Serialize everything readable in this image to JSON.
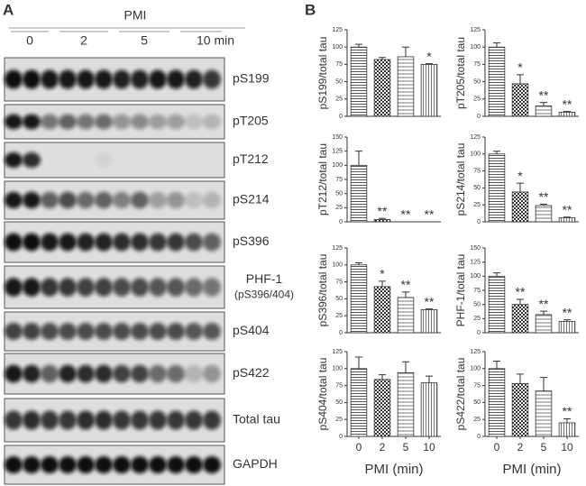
{
  "panel_a": {
    "panel_label": "A",
    "header": "PMI",
    "groups": [
      "0",
      "2",
      "5",
      "10 min"
    ],
    "rows": [
      {
        "label": "pS199"
      },
      {
        "label": "pT205"
      },
      {
        "label": "pT212"
      },
      {
        "label": "pS214"
      },
      {
        "label": "pS396"
      },
      {
        "label": "PHF-1",
        "note": "(pS396/404)"
      },
      {
        "label": "pS404"
      },
      {
        "label": "pS422"
      },
      {
        "label": "Total tau"
      },
      {
        "label": "GAPDH"
      }
    ]
  },
  "panel_b": {
    "panel_label": "B"
  },
  "chart_data": [
    {
      "type": "bar",
      "ylabel": "pS199/total tau",
      "categories": [
        null,
        null,
        null,
        null
      ],
      "values": [
        100,
        82,
        86,
        75
      ],
      "errors": [
        4,
        3,
        14,
        1
      ],
      "annotations": [
        null,
        null,
        null,
        "*"
      ],
      "ylim": [
        0,
        125
      ],
      "yticks": [
        0,
        25,
        50,
        75,
        100,
        125
      ]
    },
    {
      "type": "bar",
      "ylabel": "pT205/total tau",
      "categories": [
        null,
        null,
        null,
        null
      ],
      "values": [
        100,
        47,
        15,
        6
      ],
      "errors": [
        6,
        13,
        5,
        1
      ],
      "annotations": [
        null,
        "*",
        "**",
        "**"
      ],
      "ylim": [
        0,
        125
      ],
      "yticks": [
        0,
        25,
        50,
        75,
        100,
        125
      ]
    },
    {
      "type": "bar",
      "ylabel": "pT212/total tau",
      "categories": [
        null,
        null,
        null,
        null
      ],
      "values": [
        100,
        4,
        0,
        0
      ],
      "errors": [
        25,
        2,
        0,
        0
      ],
      "annotations": [
        null,
        "**",
        "**",
        "**"
      ],
      "ylim": [
        0,
        150
      ],
      "yticks": [
        0,
        25,
        50,
        75,
        100,
        125,
        150
      ]
    },
    {
      "type": "bar",
      "ylabel": "pS214/total tau",
      "categories": [
        null,
        null,
        null,
        null
      ],
      "values": [
        100,
        44,
        24,
        6
      ],
      "errors": [
        4,
        13,
        2,
        1
      ],
      "annotations": [
        null,
        "*",
        "**",
        "**"
      ],
      "ylim": [
        0,
        125
      ],
      "yticks": [
        0,
        25,
        50,
        75,
        100,
        125
      ]
    },
    {
      "type": "bar",
      "ylabel": "pS396/total tau",
      "categories": [
        null,
        null,
        null,
        null
      ],
      "values": [
        100,
        68,
        52,
        34
      ],
      "errors": [
        3,
        8,
        8,
        1
      ],
      "annotations": [
        null,
        "*",
        "**",
        "**"
      ],
      "ylim": [
        0,
        125
      ],
      "yticks": [
        0,
        25,
        50,
        75,
        100,
        125
      ]
    },
    {
      "type": "bar",
      "ylabel": "PHF-1/total tau",
      "categories": [
        null,
        null,
        null,
        null
      ],
      "values": [
        100,
        50,
        32,
        20
      ],
      "errors": [
        6,
        9,
        6,
        3
      ],
      "annotations": [
        null,
        "**",
        "**",
        "**"
      ],
      "ylim": [
        0,
        150
      ],
      "yticks": [
        0,
        25,
        50,
        75,
        100,
        125,
        150
      ]
    },
    {
      "type": "bar",
      "ylabel": "pS404/total tau",
      "xlabel": "PMI (min)",
      "categories": [
        "0",
        "2",
        "5",
        "10"
      ],
      "values": [
        100,
        84,
        94,
        79
      ],
      "errors": [
        17,
        7,
        16,
        10
      ],
      "annotations": [
        null,
        null,
        null,
        null
      ],
      "ylim": [
        0,
        125
      ],
      "yticks": [
        0,
        25,
        50,
        75,
        100,
        125
      ]
    },
    {
      "type": "bar",
      "ylabel": "pS422/total tau",
      "xlabel": "PMI (min)",
      "categories": [
        "0",
        "2",
        "5",
        "10"
      ],
      "values": [
        100,
        78,
        67,
        20
      ],
      "errors": [
        11,
        14,
        20,
        6
      ],
      "annotations": [
        null,
        null,
        null,
        "**"
      ],
      "ylim": [
        0,
        125
      ],
      "yticks": [
        0,
        25,
        50,
        75,
        100,
        125
      ]
    }
  ]
}
